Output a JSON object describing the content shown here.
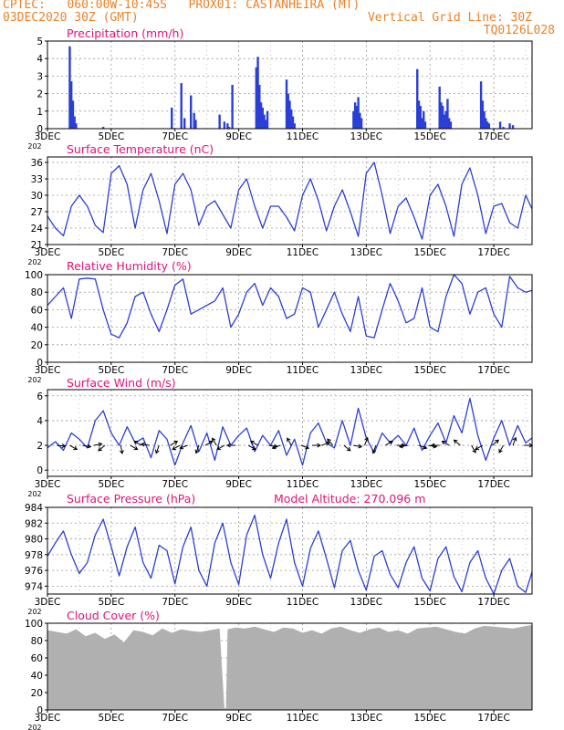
{
  "header": {
    "line1": "CPTEC:   060:00W-10:45S   PROX01: CASTANHEIRA (MT)",
    "date": "03DEC2020 30Z (GMT)",
    "grid_note": "Vertical Grid Line: 30Z",
    "run_id": "TQ0126L028",
    "color": "#e8822a"
  },
  "style": {
    "title_color": "#e0127a",
    "line_color": "#2b3fd6",
    "bar_color": "#2b3fd6",
    "cloud_color": "#b0b0b0",
    "grid_color": "#999999"
  },
  "x_axis": {
    "range_days": [
      3,
      18.2
    ],
    "ticks": [
      {
        "day": 3,
        "label": "3DEC"
      },
      {
        "day": 5,
        "label": "5DEC"
      },
      {
        "day": 7,
        "label": "7DEC"
      },
      {
        "day": 9,
        "label": "9DEC"
      },
      {
        "day": 11,
        "label": "11DEC"
      },
      {
        "day": 13,
        "label": "13DEC"
      },
      {
        "day": 15,
        "label": "15DEC"
      },
      {
        "day": 17,
        "label": "17DEC"
      }
    ],
    "year_label": "202"
  },
  "chart_data": [
    {
      "id": "precip",
      "type": "bar",
      "title": "Precipitation (mm/h)",
      "ylim": [
        0,
        5
      ],
      "yticks": [
        0,
        1,
        2,
        3,
        4,
        5
      ],
      "grid": true,
      "x": [
        3.7,
        3.75,
        3.8,
        3.85,
        3.9,
        4.75,
        6.9,
        7.2,
        7.3,
        7.5,
        7.6,
        7.65,
        8.4,
        8.55,
        8.65,
        8.7,
        8.8,
        9.55,
        9.6,
        9.65,
        9.7,
        9.75,
        9.8,
        9.85,
        9.9,
        10.5,
        10.55,
        10.6,
        10.65,
        10.7,
        10.75,
        12.6,
        12.65,
        12.7,
        12.75,
        12.8,
        12.85,
        14.6,
        14.65,
        14.7,
        14.75,
        14.8,
        14.85,
        15.3,
        15.35,
        15.4,
        15.45,
        15.5,
        15.55,
        15.6,
        15.65,
        16.6,
        16.65,
        16.7,
        16.75,
        16.8,
        16.85,
        17.2,
        17.3,
        17.5,
        17.6
      ],
      "values": [
        4.7,
        2.7,
        1.6,
        0.7,
        0.3,
        0.1,
        1.2,
        2.6,
        0.6,
        1.9,
        0.9,
        0.5,
        0.8,
        0.4,
        0.3,
        0.1,
        2.5,
        3.5,
        4.1,
        2.5,
        1.5,
        1.2,
        0.8,
        0.5,
        1.0,
        2.8,
        2.0,
        1.6,
        1.1,
        0.7,
        0.3,
        1.0,
        1.5,
        1.3,
        1.8,
        0.9,
        0.6,
        3.4,
        1.6,
        1.3,
        0.6,
        1.0,
        0.4,
        2.4,
        1.5,
        1.3,
        0.8,
        1.0,
        1.7,
        0.6,
        0.4,
        2.7,
        1.6,
        1.0,
        0.6,
        0.4,
        0.3,
        0.4,
        0.1,
        0.3,
        0.2
      ]
    },
    {
      "id": "temp",
      "type": "line",
      "title": "Surface Temperature (nC)",
      "ylim": [
        21,
        37
      ],
      "yticks": [
        21,
        24,
        27,
        30,
        33,
        36
      ],
      "grid": true,
      "x": [
        3.0,
        3.25,
        3.5,
        3.75,
        4.0,
        4.25,
        4.5,
        4.75,
        5.0,
        5.25,
        5.5,
        5.75,
        6.0,
        6.25,
        6.5,
        6.75,
        7.0,
        7.25,
        7.5,
        7.75,
        8.0,
        8.25,
        8.5,
        8.75,
        9.0,
        9.25,
        9.5,
        9.75,
        10.0,
        10.25,
        10.5,
        10.75,
        11.0,
        11.25,
        11.5,
        11.75,
        12.0,
        12.25,
        12.5,
        12.75,
        13.0,
        13.25,
        13.5,
        13.75,
        14.0,
        14.25,
        14.5,
        14.75,
        15.0,
        15.25,
        15.5,
        15.75,
        16.0,
        16.25,
        16.5,
        16.75,
        17.0,
        17.25,
        17.5,
        17.75,
        18.0,
        18.2
      ],
      "values": [
        26.2,
        24,
        22.6,
        28,
        30,
        28,
        24.5,
        23.2,
        34,
        35.4,
        32,
        24,
        31,
        34,
        29,
        23,
        32,
        34,
        31,
        24.5,
        28,
        29,
        26.5,
        24,
        31,
        33,
        28,
        24,
        28,
        28,
        26,
        23.5,
        30,
        33,
        29,
        23.5,
        28,
        31,
        27,
        22.5,
        34,
        36,
        30,
        23,
        28,
        29.5,
        26,
        22,
        30,
        32,
        28,
        22.5,
        32,
        35,
        30,
        23,
        28,
        28.5,
        25,
        24,
        30,
        27.5
      ]
    },
    {
      "id": "rh",
      "type": "line",
      "title": "Relative Humidity (%)",
      "ylim": [
        0,
        100
      ],
      "yticks": [
        0,
        20,
        40,
        60,
        80,
        100
      ],
      "grid": true,
      "x": [
        3.0,
        3.25,
        3.5,
        3.75,
        4.0,
        4.25,
        4.5,
        4.75,
        5.0,
        5.25,
        5.5,
        5.75,
        6.0,
        6.25,
        6.5,
        6.75,
        7.0,
        7.25,
        7.5,
        7.75,
        8.0,
        8.25,
        8.5,
        8.75,
        9.0,
        9.25,
        9.5,
        9.75,
        10.0,
        10.25,
        10.5,
        10.75,
        11.0,
        11.25,
        11.5,
        11.75,
        12.0,
        12.25,
        12.5,
        12.75,
        13.0,
        13.25,
        13.5,
        13.75,
        14.0,
        14.25,
        14.5,
        14.75,
        15.0,
        15.25,
        15.5,
        15.75,
        16.0,
        16.25,
        16.5,
        16.75,
        17.0,
        17.25,
        17.5,
        17.75,
        18.0,
        18.2
      ],
      "values": [
        65,
        75,
        85,
        50,
        95,
        96,
        95,
        60,
        32,
        28,
        45,
        75,
        80,
        55,
        35,
        60,
        88,
        95,
        55,
        60,
        65,
        70,
        85,
        40,
        55,
        80,
        90,
        65,
        85,
        75,
        50,
        55,
        85,
        80,
        40,
        60,
        80,
        55,
        35,
        75,
        30,
        28,
        60,
        90,
        70,
        45,
        50,
        85,
        40,
        35,
        75,
        100,
        90,
        55,
        80,
        85,
        55,
        40,
        98,
        85,
        80,
        82
      ]
    },
    {
      "id": "wind",
      "type": "line",
      "title": "Surface Wind (m/s)",
      "ylim": [
        -0.5,
        6.5
      ],
      "yticks": [
        0,
        2,
        4,
        6
      ],
      "grid": true,
      "x": [
        3.0,
        3.25,
        3.5,
        3.75,
        4.0,
        4.25,
        4.5,
        4.75,
        5.0,
        5.25,
        5.5,
        5.75,
        6.0,
        6.25,
        6.5,
        6.75,
        7.0,
        7.25,
        7.5,
        7.75,
        8.0,
        8.25,
        8.5,
        8.75,
        9.0,
        9.25,
        9.5,
        9.75,
        10.0,
        10.25,
        10.5,
        10.75,
        11.0,
        11.25,
        11.5,
        11.75,
        12.0,
        12.25,
        12.5,
        12.75,
        13.0,
        13.25,
        13.5,
        13.75,
        14.0,
        14.25,
        14.5,
        14.75,
        15.0,
        15.25,
        15.5,
        15.75,
        16.0,
        16.25,
        16.5,
        16.75,
        17.0,
        17.25,
        17.5,
        17.75,
        18.0,
        18.2
      ],
      "values": [
        1.8,
        2.3,
        1.6,
        3.0,
        2.5,
        1.8,
        4.0,
        4.8,
        3.0,
        2.0,
        3.5,
        2.2,
        2.6,
        1.0,
        3.2,
        2.5,
        0.4,
        2.2,
        3.6,
        1.5,
        3.0,
        0.8,
        3.5,
        2.0,
        2.8,
        3.4,
        1.5,
        2.8,
        2.0,
        3.2,
        1.2,
        2.5,
        0.4,
        3.0,
        3.8,
        2.2,
        1.8,
        4.0,
        2.0,
        5.0,
        2.6,
        1.4,
        3.0,
        2.2,
        2.8,
        2.0,
        3.4,
        1.6,
        2.8,
        3.8,
        2.2,
        4.4,
        3.0,
        5.8,
        2.8,
        0.8,
        2.6,
        4.0,
        2.0,
        3.6,
        2.2,
        2.6
      ],
      "arrow_days": [
        3.3,
        3.7,
        4.1,
        4.45,
        4.8,
        5.3,
        5.6,
        5.95,
        6.2,
        6.5,
        6.85,
        7.15,
        7.4,
        7.75,
        7.95,
        8.3,
        8.55,
        8.9,
        9.3,
        9.6,
        9.95,
        10.3,
        10.65,
        10.95,
        11.3,
        11.6,
        11.95,
        12.3,
        12.6,
        12.95,
        13.3,
        13.6,
        13.95,
        14.3,
        14.65,
        14.95,
        15.3,
        15.6,
        15.95,
        16.3,
        16.65,
        16.95,
        17.3,
        17.6,
        17.95
      ],
      "arrow_dirs": [
        95,
        120,
        100,
        80,
        230,
        170,
        120,
        300,
        280,
        200,
        60,
        240,
        250,
        200,
        60,
        330,
        240,
        270,
        120,
        300,
        100,
        250,
        330,
        110,
        90,
        70,
        320,
        130,
        100,
        20,
        200,
        60,
        90,
        260,
        110,
        100,
        270,
        300,
        310,
        150,
        240,
        50,
        210,
        20,
        90
      ]
    },
    {
      "id": "pres",
      "type": "line",
      "title": "Surface Pressure (hPa)",
      "annotation": "Model Altitude: 270.096 m",
      "ylim": [
        973,
        984
      ],
      "yticks": [
        974,
        976,
        978,
        980,
        982,
        984
      ],
      "grid": true,
      "x": [
        3.0,
        3.25,
        3.5,
        3.75,
        4.0,
        4.25,
        4.5,
        4.75,
        5.0,
        5.25,
        5.5,
        5.75,
        6.0,
        6.25,
        6.5,
        6.75,
        7.0,
        7.25,
        7.5,
        7.75,
        8.0,
        8.25,
        8.5,
        8.75,
        9.0,
        9.25,
        9.5,
        9.75,
        10.0,
        10.25,
        10.5,
        10.75,
        11.0,
        11.25,
        11.5,
        11.75,
        12.0,
        12.25,
        12.5,
        12.75,
        13.0,
        13.25,
        13.5,
        13.75,
        14.0,
        14.25,
        14.5,
        14.75,
        15.0,
        15.25,
        15.5,
        15.75,
        16.0,
        16.25,
        16.5,
        16.75,
        17.0,
        17.25,
        17.5,
        17.75,
        18.0,
        18.2
      ],
      "values": [
        977.8,
        979.5,
        981.0,
        978.0,
        975.6,
        977.0,
        980.5,
        982.5,
        979.0,
        975.3,
        979.0,
        981.5,
        977.0,
        975.0,
        979.2,
        978.5,
        974.3,
        979.0,
        981.5,
        976.0,
        974.0,
        979.5,
        982.0,
        977.0,
        974.2,
        980.5,
        983.0,
        978.0,
        975.0,
        979.5,
        982.5,
        977.0,
        974.0,
        978.8,
        981.0,
        977.5,
        973.8,
        978.5,
        979.8,
        976.0,
        973.5,
        977.8,
        978.5,
        975.5,
        973.8,
        977.0,
        979.0,
        975.0,
        973.4,
        977.5,
        979.0,
        975.2,
        973.3,
        977.0,
        978.5,
        975.0,
        973.0,
        976.0,
        977.5,
        974.0,
        973.2,
        975.8
      ]
    },
    {
      "id": "cloud",
      "type": "area",
      "title": "Cloud Cover (%)",
      "ylim": [
        0,
        100
      ],
      "yticks": [
        0,
        20,
        40,
        60,
        80,
        100
      ],
      "grid": true,
      "x": [
        3.0,
        3.3,
        3.6,
        3.9,
        4.2,
        4.5,
        4.8,
        5.1,
        5.4,
        5.7,
        6.0,
        6.3,
        6.6,
        6.9,
        7.2,
        7.5,
        7.8,
        8.1,
        8.4,
        8.55,
        8.6,
        8.65,
        8.9,
        9.2,
        9.5,
        9.8,
        10.1,
        10.4,
        10.7,
        11.0,
        11.3,
        11.6,
        11.9,
        12.2,
        12.5,
        12.8,
        13.1,
        13.4,
        13.7,
        14.0,
        14.3,
        14.6,
        14.9,
        15.2,
        15.5,
        15.8,
        16.1,
        16.4,
        16.7,
        17.0,
        17.3,
        17.6,
        17.9,
        18.2
      ],
      "values": [
        92,
        90,
        88,
        93,
        85,
        89,
        82,
        87,
        78,
        92,
        90,
        86,
        94,
        89,
        93,
        91,
        90,
        92,
        94,
        2,
        2,
        93,
        95,
        94,
        96,
        93,
        90,
        95,
        94,
        89,
        92,
        88,
        94,
        96,
        92,
        89,
        93,
        95,
        90,
        92,
        88,
        94,
        95,
        96,
        93,
        90,
        88,
        94,
        97,
        96,
        95,
        94,
        96,
        98
      ]
    }
  ]
}
